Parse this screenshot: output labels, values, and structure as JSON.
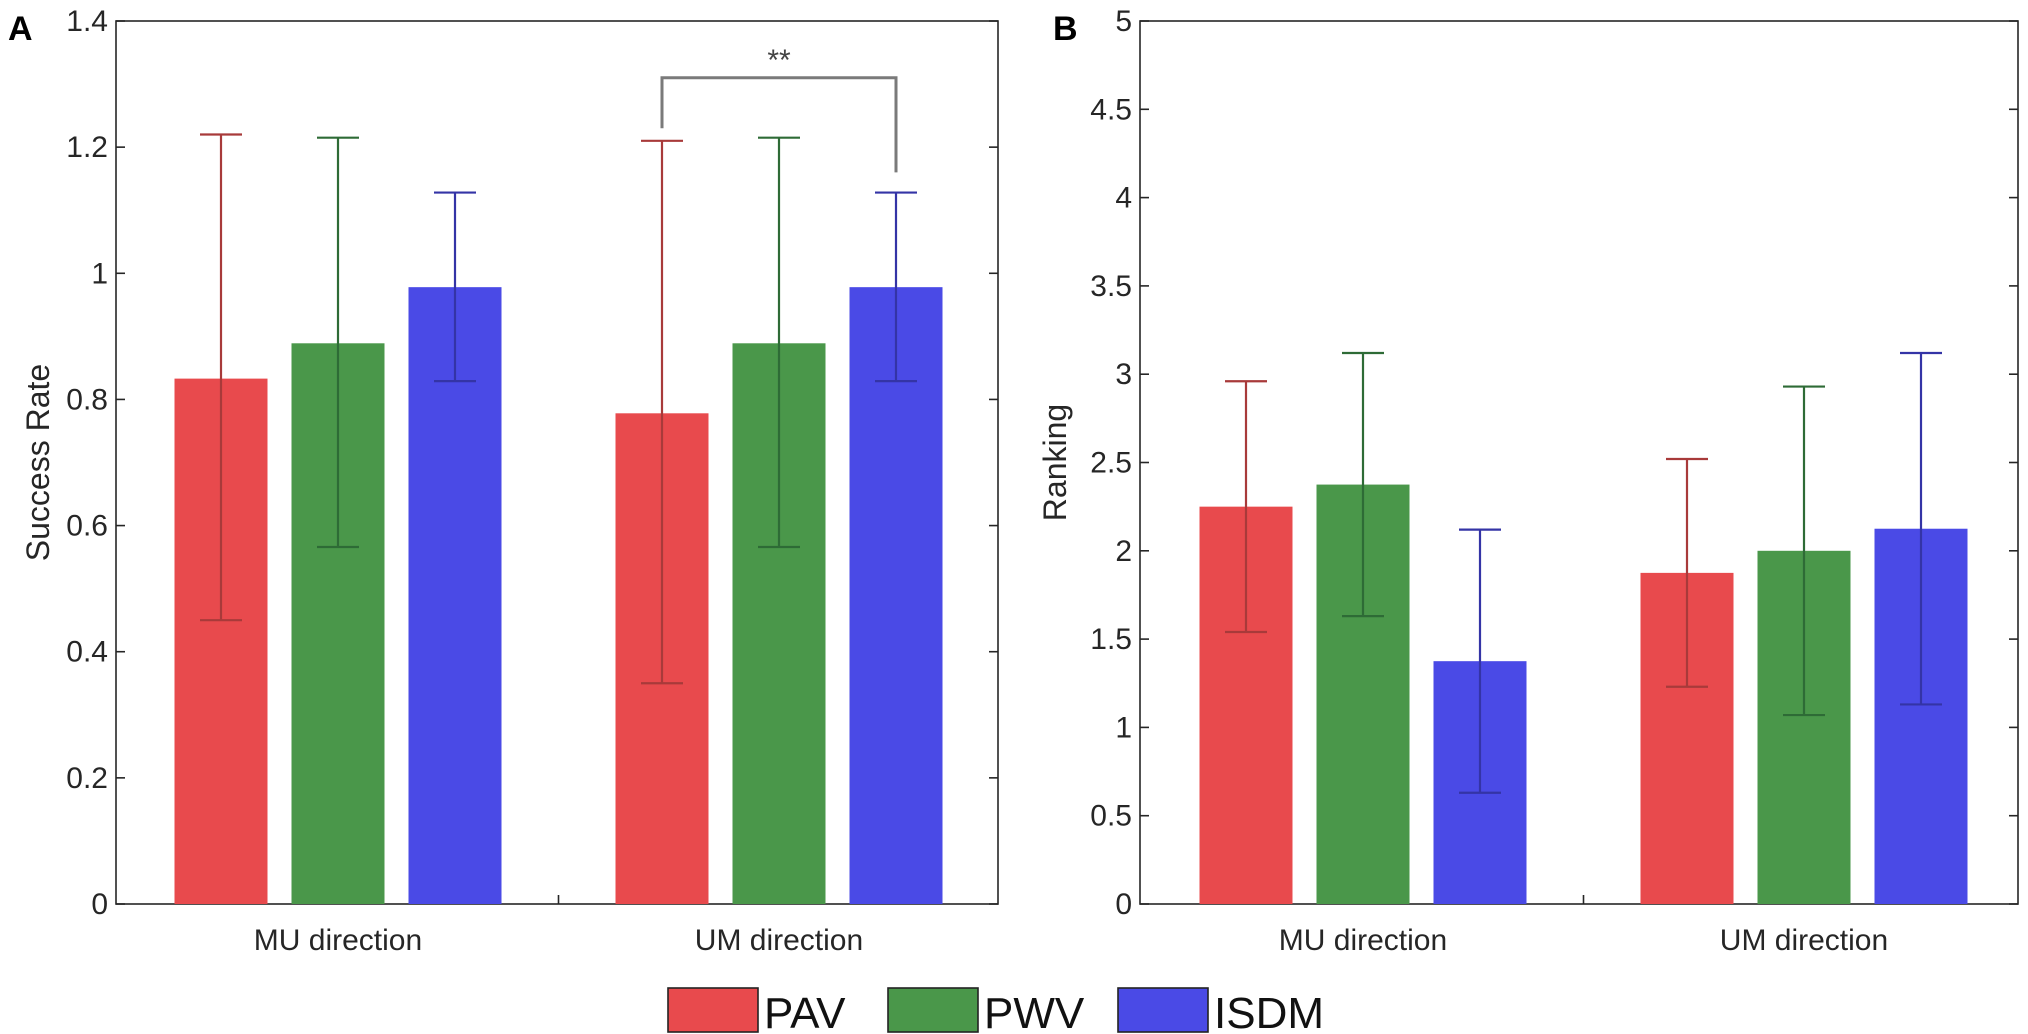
{
  "chart_data": [
    {
      "panel": "A",
      "type": "bar",
      "categories": [
        "MU direction",
        "UM direction"
      ],
      "ylabel": "Success Rate",
      "xlabel": "",
      "ylim": [
        0,
        1.4
      ],
      "yticks": [
        0,
        0.2,
        0.4,
        0.6,
        0.8,
        1,
        1.2,
        1.4
      ],
      "ytick_labels": [
        "0",
        "0.2",
        "0.4",
        "0.6",
        "0.8",
        "1",
        "1.2",
        "1.4"
      ],
      "series": [
        {
          "name": "PAV",
          "values": [
            0.833,
            0.778
          ],
          "err_low": [
            0.45,
            0.35
          ],
          "err_high": [
            1.22,
            1.21
          ]
        },
        {
          "name": "PWV",
          "values": [
            0.889,
            0.889
          ],
          "err_low": [
            0.566,
            0.566
          ],
          "err_high": [
            1.215,
            1.215
          ]
        },
        {
          "name": "ISDM",
          "values": [
            0.978,
            0.978
          ],
          "err_low": [
            0.829,
            0.829
          ],
          "err_high": [
            1.128,
            1.128
          ]
        }
      ],
      "significance": [
        {
          "label": "**",
          "category_index": 1,
          "from_series": 0,
          "to_series": 2,
          "bracket_y": 1.31,
          "left_end": 1.23,
          "right_end": 1.16
        }
      ]
    },
    {
      "panel": "B",
      "type": "bar",
      "categories": [
        "MU direction",
        "UM direction"
      ],
      "ylabel": "Ranking",
      "xlabel": "",
      "ylim": [
        0,
        5
      ],
      "yticks": [
        0,
        0.5,
        1,
        1.5,
        2,
        2.5,
        3,
        3.5,
        4,
        4.5,
        5
      ],
      "ytick_labels": [
        "0",
        "0.5",
        "1",
        "1.5",
        "2",
        "2.5",
        "3",
        "3.5",
        "4",
        "4.5",
        "5"
      ],
      "series": [
        {
          "name": "PAV",
          "values": [
            2.25,
            1.875
          ],
          "err_low": [
            1.54,
            1.23
          ],
          "err_high": [
            2.96,
            2.52
          ]
        },
        {
          "name": "PWV",
          "values": [
            2.375,
            2.0
          ],
          "err_low": [
            1.63,
            1.07
          ],
          "err_high": [
            3.12,
            2.93
          ]
        },
        {
          "name": "ISDM",
          "values": [
            1.375,
            2.125
          ],
          "err_low": [
            0.63,
            1.13
          ],
          "err_high": [
            2.12,
            3.12
          ]
        }
      ],
      "significance": []
    }
  ],
  "legend": {
    "position": "bottom-center",
    "items": [
      {
        "label": "PAV",
        "color": "#e84a4d"
      },
      {
        "label": "PWV",
        "color": "#4a974a"
      },
      {
        "label": "ISDM",
        "color": "#4a4ae6"
      }
    ]
  },
  "colors": {
    "bars": [
      "#e84a4d",
      "#4a974a",
      "#4a4ae6"
    ],
    "errorbars": [
      "#a83a3a",
      "#2e6b36",
      "#3434a6"
    ],
    "axis": "#262626",
    "bracket": "#7a7a7a"
  }
}
